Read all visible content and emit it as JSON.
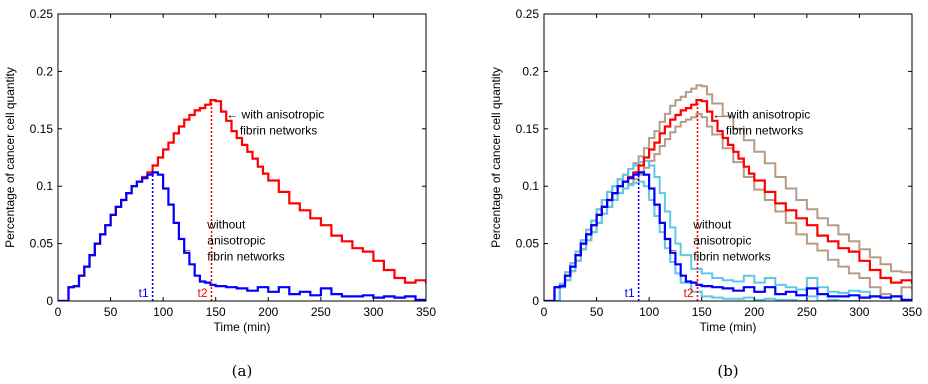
{
  "panels": [
    {
      "caption": "(a)",
      "annotation_with": [
        "← with anisotropic",
        "fibrin networks"
      ],
      "annotation_without": [
        "without",
        "anisotropic",
        "←",
        "fibrin networks"
      ],
      "t_markers": [
        {
          "label": "t1",
          "x": 90,
          "color": "#0000ff"
        },
        {
          "label": "t2",
          "x": 146,
          "color": "#ff0000"
        }
      ]
    },
    {
      "caption": "(b)",
      "annotation_with": [
        "← with anisotropic",
        "fibrin networks"
      ],
      "annotation_without": [
        "without",
        "anisotropic",
        "←",
        "fibrin networks"
      ],
      "t_markers": [
        {
          "label": "t1",
          "x": 90,
          "color": "#0000ff"
        },
        {
          "label": "t2",
          "x": 146,
          "color": "#ff0000"
        }
      ]
    }
  ],
  "colors": {
    "with": "#ff0000",
    "without": "#0000ff",
    "with_bounds": "#b89b85",
    "without_bounds": "#5fc8e6"
  },
  "chart_data": [
    {
      "type": "line",
      "xlabel": "Time (min)",
      "ylabel": "Percentage of cancer cell quantity",
      "xlim": [
        0,
        350
      ],
      "ylim": [
        0,
        0.25
      ],
      "xticks": [
        0,
        50,
        100,
        150,
        200,
        250,
        300,
        350
      ],
      "yticks": [
        0,
        0.05,
        0.1,
        0.15,
        0.2,
        0.25
      ],
      "ytick_labels": [
        "0",
        "0.05",
        "0.1",
        "0.15",
        "0.2",
        "0.25"
      ],
      "grid": false,
      "series": [
        {
          "key": "with",
          "x": [
            0,
            8,
            10,
            15,
            20,
            25,
            30,
            35,
            40,
            45,
            50,
            55,
            60,
            65,
            70,
            75,
            80,
            85,
            90,
            95,
            100,
            105,
            110,
            115,
            120,
            125,
            130,
            135,
            140,
            145,
            150,
            155,
            160,
            165,
            170,
            175,
            180,
            185,
            190,
            195,
            200,
            210,
            220,
            230,
            240,
            250,
            260,
            270,
            280,
            290,
            300,
            310,
            320,
            330,
            340,
            350
          ],
          "y": [
            0,
            0,
            0.012,
            0.013,
            0.022,
            0.03,
            0.04,
            0.05,
            0.058,
            0.066,
            0.075,
            0.082,
            0.088,
            0.094,
            0.1,
            0.104,
            0.108,
            0.112,
            0.118,
            0.125,
            0.132,
            0.138,
            0.146,
            0.152,
            0.158,
            0.162,
            0.166,
            0.168,
            0.171,
            0.175,
            0.174,
            0.165,
            0.157,
            0.148,
            0.142,
            0.136,
            0.13,
            0.124,
            0.117,
            0.111,
            0.105,
            0.095,
            0.085,
            0.079,
            0.072,
            0.066,
            0.057,
            0.052,
            0.046,
            0.043,
            0.035,
            0.027,
            0.02,
            0.016,
            0.018,
            0.015
          ]
        },
        {
          "key": "without",
          "x": [
            0,
            8,
            10,
            15,
            20,
            25,
            30,
            35,
            40,
            45,
            50,
            55,
            60,
            65,
            70,
            75,
            80,
            85,
            90,
            95,
            100,
            105,
            110,
            115,
            120,
            125,
            130,
            135,
            140,
            145,
            150,
            160,
            170,
            180,
            190,
            200,
            210,
            220,
            230,
            240,
            250,
            260,
            270,
            280,
            290,
            300,
            310,
            320,
            330,
            340,
            350
          ],
          "y": [
            0,
            0,
            0.012,
            0.013,
            0.022,
            0.03,
            0.04,
            0.05,
            0.058,
            0.066,
            0.075,
            0.082,
            0.088,
            0.094,
            0.1,
            0.104,
            0.107,
            0.11,
            0.112,
            0.11,
            0.098,
            0.084,
            0.068,
            0.054,
            0.042,
            0.032,
            0.022,
            0.017,
            0.016,
            0.014,
            0.013,
            0.012,
            0.011,
            0.009,
            0.012,
            0.008,
            0.012,
            0.006,
            0.008,
            0.005,
            0.011,
            0.006,
            0.004,
            0.004,
            0.005,
            0.003,
            0.004,
            0.003,
            0.004,
            0.001,
            0.0
          ]
        }
      ]
    },
    {
      "type": "line",
      "xlabel": "Time (min)",
      "ylabel": "Percentage of cancer cell quantity",
      "xlim": [
        0,
        350
      ],
      "ylim": [
        0,
        0.25
      ],
      "xticks": [
        0,
        50,
        100,
        150,
        200,
        250,
        300,
        350
      ],
      "yticks": [
        0,
        0.05,
        0.1,
        0.15,
        0.2,
        0.25
      ],
      "ytick_labels": [
        "0",
        "0.05",
        "0.1",
        "0.15",
        "0.2",
        "0.25"
      ],
      "grid": false,
      "series": [
        {
          "key": "with_upper",
          "x": [
            0,
            10,
            15,
            20,
            25,
            30,
            35,
            40,
            45,
            50,
            55,
            60,
            65,
            70,
            75,
            80,
            85,
            90,
            95,
            100,
            105,
            110,
            115,
            120,
            125,
            130,
            135,
            140,
            145,
            150,
            155,
            160,
            170,
            180,
            190,
            200,
            210,
            220,
            230,
            240,
            250,
            260,
            270,
            280,
            290,
            300,
            310,
            320,
            330,
            340,
            350
          ],
          "y": [
            0,
            0,
            0.015,
            0.025,
            0.033,
            0.043,
            0.053,
            0.062,
            0.07,
            0.08,
            0.088,
            0.095,
            0.1,
            0.106,
            0.11,
            0.115,
            0.12,
            0.126,
            0.133,
            0.142,
            0.148,
            0.156,
            0.163,
            0.17,
            0.175,
            0.178,
            0.182,
            0.185,
            0.188,
            0.187,
            0.18,
            0.172,
            0.161,
            0.15,
            0.14,
            0.13,
            0.12,
            0.108,
            0.098,
            0.088,
            0.08,
            0.072,
            0.066,
            0.058,
            0.052,
            0.045,
            0.038,
            0.032,
            0.026,
            0.025,
            0.022
          ]
        },
        {
          "key": "with_lower",
          "x": [
            0,
            10,
            15,
            20,
            25,
            30,
            35,
            40,
            45,
            50,
            55,
            60,
            65,
            70,
            75,
            80,
            85,
            90,
            95,
            100,
            105,
            110,
            115,
            120,
            125,
            130,
            135,
            140,
            145,
            150,
            155,
            160,
            170,
            180,
            190,
            200,
            210,
            220,
            230,
            240,
            250,
            260,
            270,
            280,
            290,
            300,
            310,
            320,
            330,
            340,
            350
          ],
          "y": [
            0,
            0,
            0.012,
            0.018,
            0.026,
            0.035,
            0.045,
            0.053,
            0.06,
            0.068,
            0.076,
            0.082,
            0.088,
            0.094,
            0.098,
            0.102,
            0.106,
            0.11,
            0.116,
            0.122,
            0.128,
            0.135,
            0.141,
            0.147,
            0.152,
            0.156,
            0.158,
            0.16,
            0.163,
            0.16,
            0.152,
            0.145,
            0.133,
            0.121,
            0.108,
            0.097,
            0.088,
            0.078,
            0.068,
            0.058,
            0.05,
            0.044,
            0.036,
            0.03,
            0.024,
            0.02,
            0.012,
            0.006,
            0.004,
            0.012,
            0.01
          ]
        },
        {
          "key": "without_upper",
          "x": [
            0,
            10,
            15,
            20,
            25,
            30,
            35,
            40,
            45,
            50,
            55,
            60,
            65,
            70,
            75,
            80,
            85,
            90,
            95,
            100,
            105,
            110,
            115,
            120,
            125,
            130,
            140,
            150,
            160,
            170,
            180,
            190,
            200,
            210,
            220,
            230,
            240,
            250,
            260,
            270,
            280,
            290,
            300,
            310,
            320,
            330
          ],
          "y": [
            0,
            0,
            0.015,
            0.025,
            0.033,
            0.043,
            0.053,
            0.062,
            0.07,
            0.08,
            0.088,
            0.095,
            0.1,
            0.106,
            0.11,
            0.115,
            0.118,
            0.121,
            0.122,
            0.118,
            0.108,
            0.094,
            0.078,
            0.064,
            0.05,
            0.04,
            0.028,
            0.024,
            0.02,
            0.018,
            0.017,
            0.022,
            0.016,
            0.02,
            0.014,
            0.012,
            0.01,
            0.02,
            0.012,
            0.008,
            0.007,
            0.009,
            0.008,
            0.004,
            0.003,
            0.0
          ]
        },
        {
          "key": "without_lower",
          "x": [
            0,
            10,
            15,
            20,
            25,
            30,
            35,
            40,
            45,
            50,
            55,
            60,
            65,
            70,
            75,
            80,
            85,
            90,
            95,
            100,
            105,
            110,
            115,
            120,
            125,
            130,
            140,
            150,
            160,
            170,
            180,
            190,
            200,
            210,
            220,
            230,
            240,
            250,
            260,
            270,
            280,
            290,
            300
          ],
          "y": [
            0,
            0,
            0.012,
            0.018,
            0.026,
            0.035,
            0.045,
            0.053,
            0.06,
            0.068,
            0.076,
            0.082,
            0.088,
            0.094,
            0.098,
            0.101,
            0.103,
            0.104,
            0.1,
            0.088,
            0.074,
            0.06,
            0.046,
            0.034,
            0.024,
            0.016,
            0.008,
            0.004,
            0.003,
            0.002,
            0.002,
            0.003,
            0.001,
            0.002,
            0.001,
            0.001,
            0.0,
            0.004,
            0.0,
            0.001,
            0.0,
            0.0,
            0.0
          ]
        },
        {
          "key": "with",
          "x": [
            0,
            8,
            10,
            15,
            20,
            25,
            30,
            35,
            40,
            45,
            50,
            55,
            60,
            65,
            70,
            75,
            80,
            85,
            90,
            95,
            100,
            105,
            110,
            115,
            120,
            125,
            130,
            135,
            140,
            145,
            150,
            155,
            160,
            165,
            170,
            175,
            180,
            185,
            190,
            195,
            200,
            210,
            220,
            230,
            240,
            250,
            260,
            270,
            280,
            290,
            300,
            310,
            320,
            330,
            340,
            350
          ],
          "y": [
            0,
            0,
            0.012,
            0.013,
            0.022,
            0.03,
            0.04,
            0.05,
            0.058,
            0.066,
            0.075,
            0.082,
            0.088,
            0.094,
            0.1,
            0.104,
            0.108,
            0.112,
            0.118,
            0.125,
            0.132,
            0.138,
            0.146,
            0.152,
            0.158,
            0.162,
            0.166,
            0.168,
            0.171,
            0.175,
            0.174,
            0.165,
            0.157,
            0.148,
            0.142,
            0.136,
            0.13,
            0.124,
            0.117,
            0.111,
            0.105,
            0.095,
            0.085,
            0.079,
            0.072,
            0.066,
            0.057,
            0.052,
            0.046,
            0.043,
            0.035,
            0.027,
            0.02,
            0.016,
            0.018,
            0.015
          ]
        },
        {
          "key": "without",
          "x": [
            0,
            8,
            10,
            15,
            20,
            25,
            30,
            35,
            40,
            45,
            50,
            55,
            60,
            65,
            70,
            75,
            80,
            85,
            90,
            95,
            100,
            105,
            110,
            115,
            120,
            125,
            130,
            135,
            140,
            145,
            150,
            160,
            170,
            180,
            190,
            200,
            210,
            220,
            230,
            240,
            250,
            260,
            270,
            280,
            290,
            300,
            310,
            320,
            330,
            340,
            350
          ],
          "y": [
            0,
            0,
            0.012,
            0.013,
            0.022,
            0.03,
            0.04,
            0.05,
            0.058,
            0.066,
            0.075,
            0.082,
            0.088,
            0.094,
            0.1,
            0.104,
            0.107,
            0.11,
            0.112,
            0.11,
            0.098,
            0.084,
            0.068,
            0.054,
            0.042,
            0.032,
            0.022,
            0.017,
            0.016,
            0.014,
            0.013,
            0.012,
            0.011,
            0.009,
            0.012,
            0.008,
            0.012,
            0.006,
            0.008,
            0.005,
            0.011,
            0.006,
            0.004,
            0.004,
            0.005,
            0.003,
            0.004,
            0.003,
            0.004,
            0.001,
            0.0
          ]
        }
      ]
    }
  ]
}
